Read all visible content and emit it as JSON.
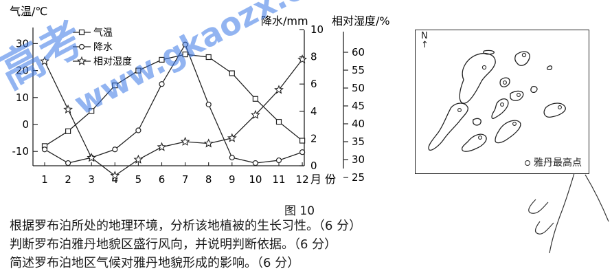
{
  "watermark": {
    "cjk": "高考",
    "latin": "www.gkaozx.c",
    "color": "#3a78e6"
  },
  "chart_data": {
    "type": "line",
    "categories": [
      "1",
      "2",
      "3",
      "4",
      "5",
      "6",
      "7",
      "8",
      "9",
      "10",
      "11",
      "12"
    ],
    "x_unit": "月 份",
    "axes": {
      "left": {
        "label": "气温/℃",
        "ticks": [
          "30",
          "20",
          "10",
          "0",
          "-10"
        ],
        "range": [
          -15,
          35
        ]
      },
      "right1": {
        "label": "降水/mm",
        "ticks": [
          "10",
          "8",
          "6",
          "4",
          "2",
          "0"
        ],
        "range": [
          0,
          10
        ]
      },
      "right2": {
        "label": "相对湿度/%",
        "ticks": [
          "60",
          "55",
          "50",
          "45",
          "40",
          "35",
          "30",
          "25"
        ],
        "range": [
          22.5,
          60
        ]
      }
    },
    "series": [
      {
        "name": "气温",
        "axis": "left",
        "marker": "square",
        "values": [
          -8,
          -2.5,
          5,
          14.5,
          20,
          24,
          26,
          25,
          19,
          9.5,
          1,
          -6
        ]
      },
      {
        "name": "降水",
        "axis": "right1",
        "marker": "circle",
        "values": [
          1.2,
          0.2,
          0.6,
          1.2,
          2.6,
          6,
          8.9,
          4.5,
          0.6,
          0.2,
          0.4,
          1
        ]
      },
      {
        "name": "相对湿度",
        "axis": "right2",
        "marker": "star",
        "values": [
          57.5,
          44,
          30.5,
          25.5,
          30,
          33.5,
          35,
          34.5,
          36,
          42.5,
          49.5,
          58
        ]
      }
    ],
    "legend_position": "top-left"
  },
  "map": {
    "north": "N",
    "legend_label": "雅丹最高点"
  },
  "figure_caption": "图 10",
  "questions": [
    "根据罗布泊所处的地理环境，分析该地植被的生长习性。（6 分）",
    "判断罗布泊雅丹地貌区盛行风向，并说明判断依据。（6 分）",
    "简述罗布泊地区气候对雅丹地貌形成的影响。（6 分）"
  ]
}
